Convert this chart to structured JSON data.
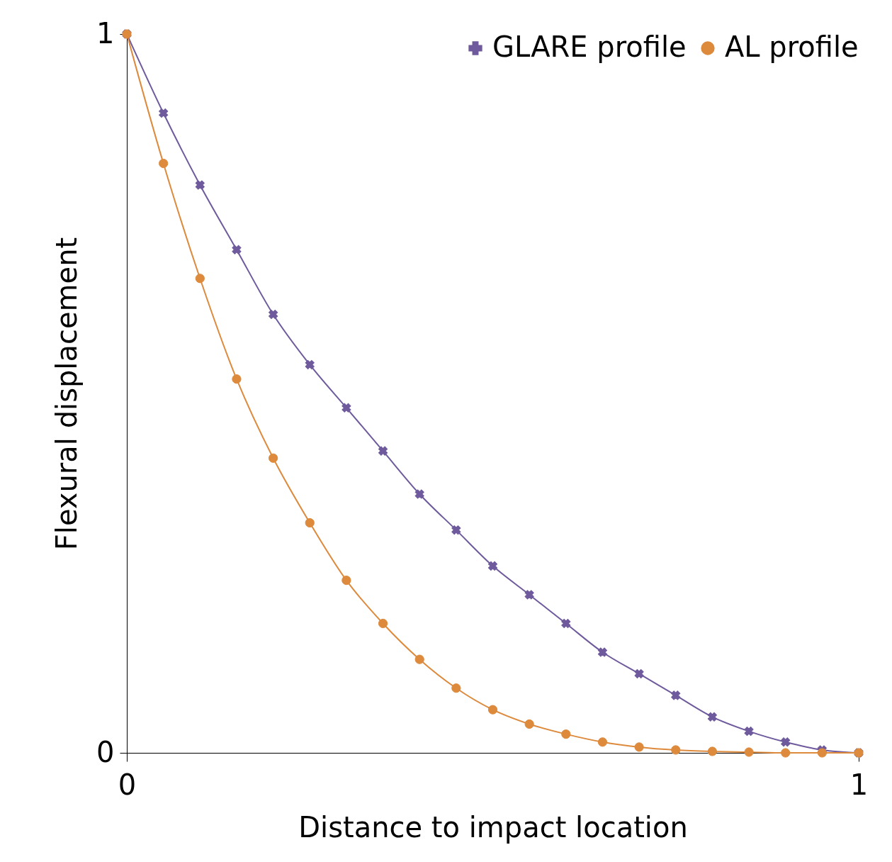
{
  "chart_data": {
    "type": "line",
    "xlabel": "Distance to impact location",
    "ylabel": "Flexural displacement",
    "x": [
      0,
      0.05,
      0.1,
      0.15,
      0.2,
      0.25,
      0.3,
      0.35,
      0.4,
      0.45,
      0.5,
      0.55,
      0.6,
      0.65,
      0.7,
      0.75,
      0.8,
      0.85,
      0.9,
      0.95,
      1
    ],
    "series": [
      {
        "name": "GLARE profile",
        "color": "#6e5a9c",
        "marker": "cross",
        "values": [
          1.0,
          0.89,
          0.79,
          0.7,
          0.61,
          0.54,
          0.48,
          0.42,
          0.36,
          0.31,
          0.26,
          0.22,
          0.18,
          0.14,
          0.11,
          0.08,
          0.05,
          0.03,
          0.015,
          0.004,
          0
        ]
      },
      {
        "name": "AL profile",
        "color": "#dd8a3c",
        "marker": "circle",
        "values": [
          1.0,
          0.82,
          0.66,
          0.52,
          0.41,
          0.32,
          0.24,
          0.18,
          0.13,
          0.09,
          0.06,
          0.04,
          0.026,
          0.015,
          0.008,
          0.004,
          0.002,
          0.001,
          0,
          0,
          0
        ]
      }
    ],
    "xlim": [
      0,
      1
    ],
    "xticks": [
      0,
      1
    ],
    "ylim": [
      0,
      1
    ],
    "yticks": [
      0,
      1
    ],
    "grid": false,
    "legend": "top right",
    "line_style": "solid"
  }
}
